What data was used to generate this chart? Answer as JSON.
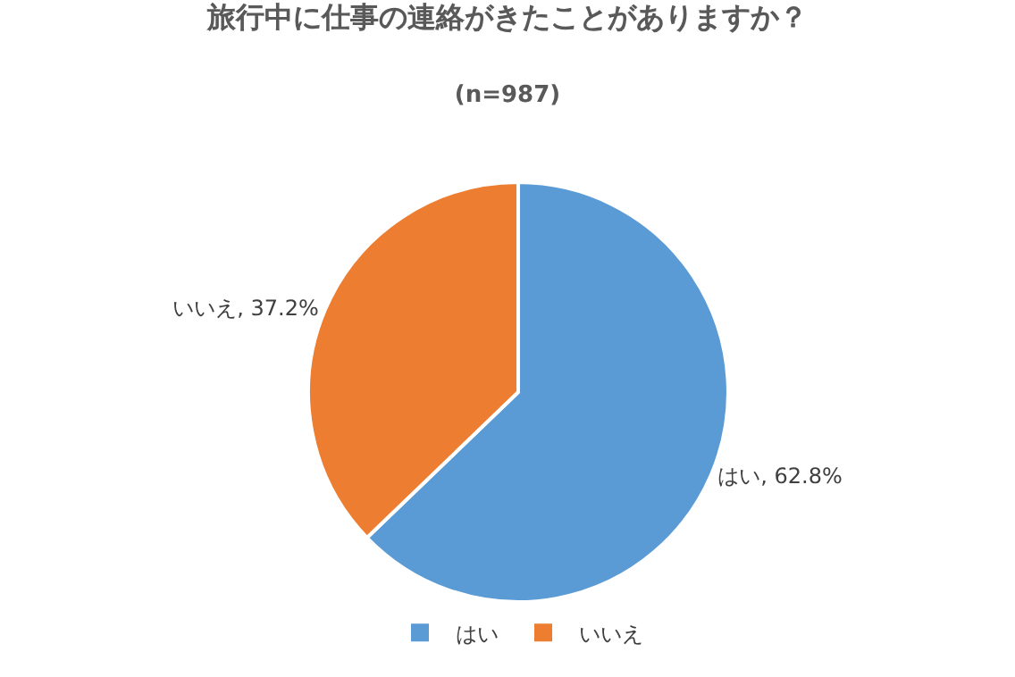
{
  "chart_data": {
    "type": "pie",
    "title": "旅行中に仕事の連絡がきたことがありますか？",
    "subtitle": "(n=987)",
    "categories": [
      "はい",
      "いいえ"
    ],
    "values": [
      62.8,
      37.2
    ],
    "colors": [
      "#5b9bd5",
      "#ed7d31"
    ],
    "value_labels": [
      "はい, 62.8%",
      "いいえ, 37.2%"
    ],
    "legend": "bottom"
  }
}
